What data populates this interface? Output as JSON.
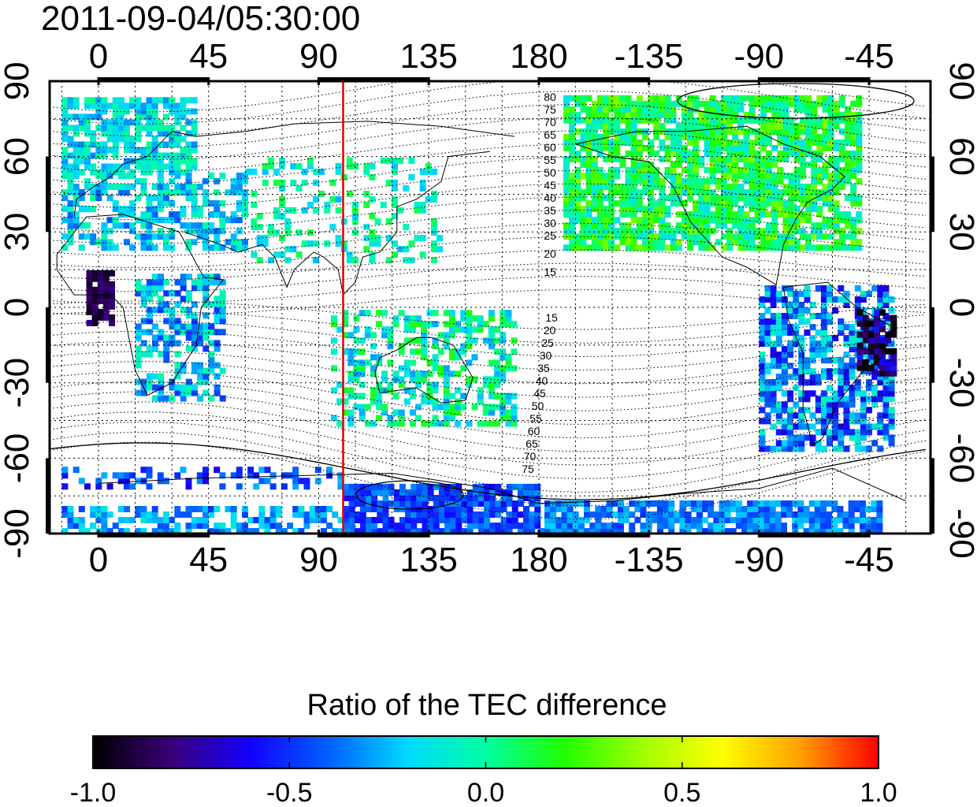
{
  "title": "2011-09-04/05:30:00",
  "map": {
    "lon_ticks": [
      "0",
      "45",
      "90",
      "135",
      "180",
      "-135",
      "-90",
      "-45"
    ],
    "lat_ticks": [
      "-90",
      "-60",
      "-30",
      "0",
      "30",
      "60",
      "90"
    ],
    "center_line_lon": 100,
    "center_line_color": "#e00000",
    "contour_labels_north": [
      "80",
      "75",
      "70",
      "65",
      "60",
      "55",
      "50",
      "45",
      "40",
      "35",
      "30",
      "25",
      "20",
      "15"
    ],
    "contour_labels_south": [
      "15",
      "20",
      "25",
      "30",
      "35",
      "40",
      "45",
      "50",
      "55",
      "60",
      "65",
      "70",
      "75"
    ]
  },
  "colorbar": {
    "title": "Ratio of the TEC difference",
    "ticks": [
      "-1.0",
      "-0.5",
      "0.0",
      "0.5",
      "1.0"
    ],
    "colors": [
      "#000000",
      "#3a0078",
      "#1400ff",
      "#0060ff",
      "#00d8ff",
      "#00ffa0",
      "#20ff00",
      "#a0ff00",
      "#ffff00",
      "#ffa000",
      "#ff0000"
    ]
  }
}
